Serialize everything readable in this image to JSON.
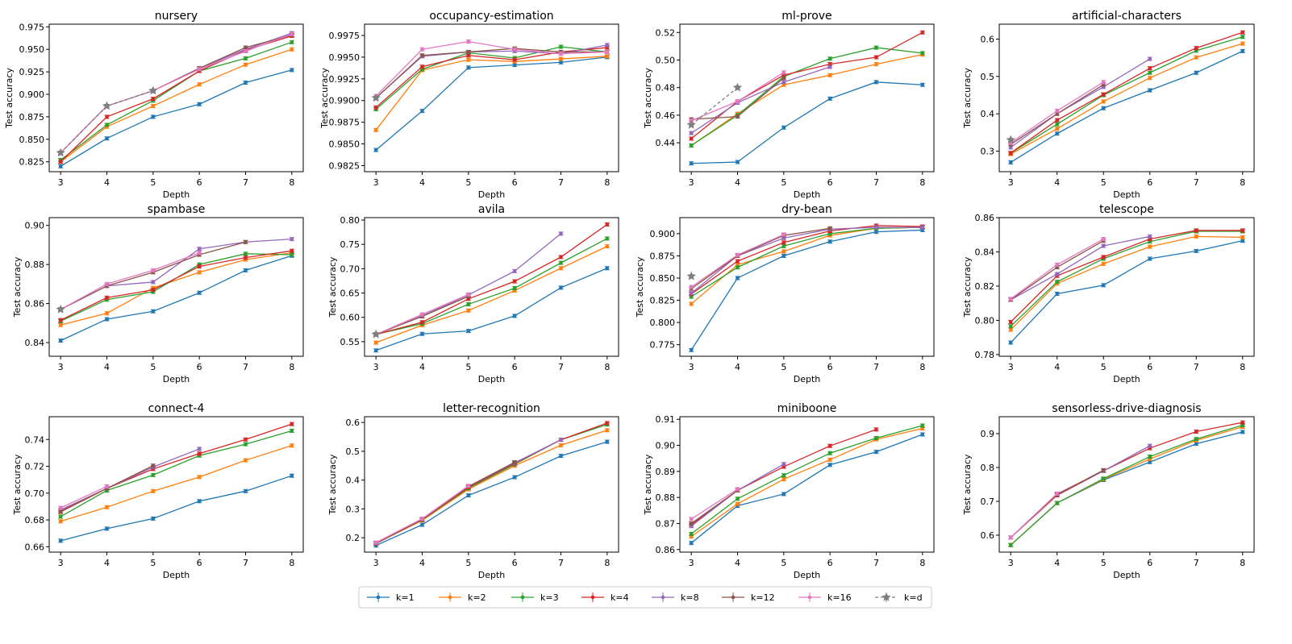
{
  "chart_data": {
    "type": "line",
    "layout": "3 rows x 4 columns of subplots with shared legend at bottom",
    "x": [
      3,
      4,
      5,
      6,
      7,
      8
    ],
    "xlabel": "Depth",
    "ylabel": "Test accuracy",
    "xticks": [
      "3",
      "4",
      "5",
      "6",
      "7",
      "8"
    ],
    "legend": {
      "placement": "bottom-center",
      "entries": [
        {
          "name": "k=1",
          "color": "#1f77b4",
          "style": "solid",
          "marker": "dot"
        },
        {
          "name": "k=2",
          "color": "#ff7f0e",
          "style": "solid",
          "marker": "dot"
        },
        {
          "name": "k=3",
          "color": "#2ca02c",
          "style": "solid",
          "marker": "dot"
        },
        {
          "name": "k=4",
          "color": "#d62728",
          "style": "solid",
          "marker": "dot"
        },
        {
          "name": "k=8",
          "color": "#9467bd",
          "style": "solid",
          "marker": "dot"
        },
        {
          "name": "k=12",
          "color": "#8c564b",
          "style": "solid",
          "marker": "dot"
        },
        {
          "name": "k=16",
          "color": "#e377c2",
          "style": "solid",
          "marker": "dot"
        },
        {
          "name": "k=d",
          "color": "#7f7f7f",
          "style": "dashed",
          "marker": "star"
        }
      ]
    },
    "subplots": [
      {
        "title": "nursery",
        "ylim": [
          0.814,
          0.978
        ],
        "yticks": [
          "0.825",
          "0.850",
          "0.875",
          "0.900",
          "0.925",
          "0.950",
          "0.975"
        ],
        "series": [
          [
            0.82,
            0.851,
            0.875,
            0.889,
            0.913,
            0.927
          ],
          [
            0.825,
            0.864,
            0.887,
            0.911,
            0.933,
            0.95
          ],
          [
            0.827,
            0.866,
            0.893,
            0.926,
            0.94,
            0.958
          ],
          [
            0.825,
            0.875,
            0.895,
            0.926,
            0.949,
            0.965
          ],
          [
            0.835,
            0.887,
            0.904,
            0.929,
            0.95,
            0.968
          ],
          [
            0.835,
            0.887,
            0.904,
            0.929,
            0.952,
            0.966
          ],
          [
            0.835,
            0.887,
            0.904,
            0.928,
            0.948,
            0.967
          ],
          [
            0.835,
            0.887,
            0.904,
            null,
            null,
            null
          ]
        ]
      },
      {
        "title": "occupancy-estimation",
        "ylim": [
          0.9818,
          0.9988
        ],
        "yticks": [
          "0.9825",
          "0.9850",
          "0.9875",
          "0.9900",
          "0.9925",
          "0.9950",
          "0.9975"
        ],
        "series": [
          [
            0.9843,
            0.9888,
            0.9938,
            0.9941,
            0.9944,
            0.995
          ],
          [
            0.9866,
            0.9935,
            0.9947,
            0.9945,
            0.9948,
            0.9951
          ],
          [
            0.989,
            0.9936,
            0.9955,
            0.9949,
            0.9962,
            0.9956
          ],
          [
            0.9892,
            0.9939,
            0.9952,
            0.9947,
            0.9956,
            0.9961
          ],
          [
            0.9903,
            0.9951,
            0.9956,
            0.9957,
            0.9954,
            0.9964
          ],
          [
            0.9903,
            0.9952,
            0.9956,
            0.996,
            0.9956,
            0.9956
          ],
          [
            0.9905,
            0.9959,
            0.9968,
            0.9959,
            0.9954,
            0.9956
          ],
          [
            0.9903,
            null,
            null,
            null,
            null,
            null
          ]
        ]
      },
      {
        "title": "ml-prove",
        "ylim": [
          0.419,
          0.526
        ],
        "yticks": [
          "0.44",
          "0.46",
          "0.48",
          "0.50",
          "0.52"
        ],
        "series": [
          [
            0.425,
            0.426,
            0.451,
            0.472,
            0.484,
            0.482
          ],
          [
            0.438,
            0.461,
            0.482,
            0.489,
            0.497,
            0.504
          ],
          [
            0.438,
            0.46,
            0.488,
            0.501,
            0.509,
            0.505
          ],
          [
            0.443,
            0.47,
            0.489,
            0.497,
            0.502,
            0.52
          ],
          [
            0.447,
            0.469,
            0.484,
            0.495,
            null,
            null
          ],
          [
            0.457,
            0.459,
            0.487,
            null,
            null,
            null
          ],
          [
            0.456,
            0.47,
            0.491,
            null,
            null,
            null
          ],
          [
            0.453,
            0.48,
            null,
            null,
            null,
            null
          ]
        ]
      },
      {
        "title": "artificial-characters",
        "ylim": [
          0.245,
          0.64
        ],
        "yticks": [
          "0.3",
          "0.4",
          "0.5",
          "0.6"
        ],
        "series": [
          [
            0.27,
            0.347,
            0.415,
            0.463,
            0.51,
            0.568
          ],
          [
            0.292,
            0.36,
            0.433,
            0.496,
            0.551,
            0.588
          ],
          [
            0.295,
            0.372,
            0.45,
            0.51,
            0.569,
            0.606
          ],
          [
            0.295,
            0.383,
            0.452,
            0.522,
            0.576,
            0.618
          ],
          [
            0.31,
            0.4,
            0.472,
            0.547,
            null,
            null
          ],
          [
            0.318,
            0.4,
            0.478,
            null,
            null,
            null
          ],
          [
            0.322,
            0.408,
            0.485,
            null,
            null,
            null
          ],
          [
            0.33,
            null,
            null,
            null,
            null,
            null
          ]
        ]
      },
      {
        "title": "spambase",
        "ylim": [
          0.833,
          0.904
        ],
        "yticks": [
          "0.84",
          "0.86",
          "0.88",
          "0.90"
        ],
        "series": [
          [
            0.841,
            0.852,
            0.856,
            0.8655,
            0.877,
            0.8845
          ],
          [
            0.849,
            0.855,
            0.868,
            0.876,
            0.8825,
            0.886
          ],
          [
            0.851,
            0.862,
            0.866,
            0.88,
            0.8855,
            0.885
          ],
          [
            0.8515,
            0.863,
            0.867,
            0.879,
            0.8835,
            0.887
          ],
          [
            0.857,
            0.869,
            0.871,
            0.888,
            0.8915,
            0.893
          ],
          [
            0.857,
            0.869,
            0.876,
            0.885,
            0.8915,
            null
          ],
          [
            0.857,
            0.87,
            0.877,
            0.886,
            null,
            null
          ],
          [
            0.857,
            null,
            null,
            null,
            null,
            null
          ]
        ]
      },
      {
        "title": "avila",
        "ylim": [
          0.52,
          0.805
        ],
        "yticks": [
          "0.55",
          "0.60",
          "0.65",
          "0.70",
          "0.75",
          "0.80"
        ],
        "series": [
          [
            0.532,
            0.566,
            0.572,
            0.603,
            0.661,
            0.701
          ],
          [
            0.548,
            0.584,
            0.614,
            0.655,
            0.701,
            0.746
          ],
          [
            0.565,
            0.587,
            0.627,
            0.66,
            0.712,
            0.762
          ],
          [
            0.565,
            0.59,
            0.638,
            0.674,
            0.724,
            0.791
          ],
          [
            0.565,
            0.603,
            0.646,
            0.695,
            0.772,
            null
          ],
          [
            0.565,
            0.602,
            0.643,
            null,
            null,
            null
          ],
          [
            0.565,
            0.606,
            0.647,
            null,
            null,
            null
          ],
          [
            0.565,
            null,
            null,
            null,
            null,
            null
          ]
        ]
      },
      {
        "title": "dry-bean",
        "ylim": [
          0.762,
          0.918
        ],
        "yticks": [
          "0.775",
          "0.800",
          "0.825",
          "0.850",
          "0.875",
          "0.900"
        ],
        "series": [
          [
            0.769,
            0.85,
            0.875,
            0.891,
            0.902,
            0.904
          ],
          [
            0.821,
            0.865,
            0.88,
            0.898,
            0.906,
            0.907
          ],
          [
            0.829,
            0.862,
            0.886,
            0.9,
            0.906,
            0.907
          ],
          [
            0.832,
            0.869,
            0.89,
            0.903,
            0.909,
            0.908
          ],
          [
            0.833,
            0.875,
            0.895,
            0.905,
            0.907,
            0.907
          ],
          [
            0.838,
            0.875,
            0.898,
            0.906,
            null,
            null
          ],
          [
            0.84,
            0.876,
            0.899,
            null,
            null,
            null
          ],
          [
            0.852,
            null,
            null,
            null,
            null,
            null
          ]
        ]
      },
      {
        "title": "telescope",
        "ylim": [
          0.779,
          0.86
        ],
        "yticks": [
          "0.78",
          "0.80",
          "0.82",
          "0.84",
          "0.86"
        ],
        "series": [
          [
            0.787,
            0.8155,
            0.8205,
            0.836,
            0.8405,
            0.8465
          ],
          [
            0.7945,
            0.8215,
            0.833,
            0.843,
            0.849,
            0.8485
          ],
          [
            0.7965,
            0.8225,
            0.836,
            0.846,
            0.852,
            0.852
          ],
          [
            0.799,
            0.826,
            0.837,
            0.8475,
            0.8525,
            0.8525
          ],
          [
            0.812,
            0.827,
            0.8435,
            0.849,
            null,
            null
          ],
          [
            0.812,
            0.831,
            0.8465,
            null,
            null,
            null
          ],
          [
            0.8125,
            0.8325,
            0.8475,
            null,
            null,
            null
          ],
          [
            null,
            null,
            null,
            null,
            null,
            null
          ]
        ]
      },
      {
        "title": "connect-4",
        "ylim": [
          0.656,
          0.757
        ],
        "yticks": [
          "0.66",
          "0.68",
          "0.70",
          "0.72",
          "0.74"
        ],
        "series": [
          [
            0.6645,
            0.6735,
            0.681,
            0.694,
            0.7015,
            0.713
          ],
          [
            0.679,
            0.6895,
            0.7015,
            0.712,
            0.7245,
            0.7355
          ],
          [
            0.6825,
            0.702,
            0.7135,
            0.728,
            0.7365,
            0.7465
          ],
          [
            0.686,
            0.7035,
            0.718,
            0.7295,
            0.74,
            0.7515
          ],
          [
            0.6875,
            0.7035,
            0.7195,
            0.733,
            null,
            null
          ],
          [
            0.6865,
            0.7035,
            0.7205,
            null,
            null,
            null
          ],
          [
            0.689,
            0.705,
            null,
            null,
            null,
            null
          ],
          [
            null,
            null,
            null,
            null,
            null,
            null
          ]
        ]
      },
      {
        "title": "letter-recognition",
        "ylim": [
          0.15,
          0.62
        ],
        "yticks": [
          "0.2",
          "0.3",
          "0.4",
          "0.5",
          "0.6"
        ],
        "series": [
          [
            0.173,
            0.245,
            0.347,
            0.41,
            0.484,
            0.533
          ],
          [
            0.18,
            0.26,
            0.368,
            0.45,
            0.521,
            0.573
          ],
          [
            0.18,
            0.262,
            0.372,
            0.455,
            0.54,
            0.593
          ],
          [
            0.18,
            0.263,
            0.375,
            0.458,
            0.54,
            0.598
          ],
          [
            0.182,
            0.265,
            0.378,
            0.46,
            0.54,
            null
          ],
          [
            0.18,
            0.265,
            0.378,
            0.462,
            null,
            null
          ],
          [
            0.183,
            0.266,
            0.38,
            null,
            null,
            null
          ],
          [
            null,
            null,
            null,
            null,
            null,
            null
          ]
        ]
      },
      {
        "title": "miniboone",
        "ylim": [
          0.859,
          0.911
        ],
        "yticks": [
          "0.86",
          "0.87",
          "0.88",
          "0.89",
          "0.90",
          "0.91"
        ],
        "series": [
          [
            0.8625,
            0.8768,
            0.8813,
            0.8925,
            0.8975,
            0.9042
          ],
          [
            0.865,
            0.8775,
            0.887,
            0.8945,
            0.9023,
            0.9065
          ],
          [
            0.866,
            0.8795,
            0.8885,
            0.897,
            0.9028,
            0.9076
          ],
          [
            0.8695,
            0.8827,
            0.8918,
            0.8998,
            0.9061,
            null
          ],
          [
            0.869,
            0.8827,
            0.8928,
            null,
            null,
            null
          ],
          [
            0.87,
            0.8827,
            null,
            null,
            null,
            null
          ],
          [
            0.8717,
            0.8832,
            null,
            null,
            null,
            null
          ],
          [
            null,
            null,
            null,
            null,
            null,
            null
          ]
        ]
      },
      {
        "title": "sensorless-drive-diagnosis",
        "ylim": [
          0.55,
          0.95
        ],
        "yticks": [
          "0.6",
          "0.7",
          "0.8",
          "0.9"
        ],
        "series": [
          [
            0.571,
            0.695,
            0.763,
            0.816,
            0.87,
            0.905
          ],
          [
            0.571,
            0.695,
            0.765,
            0.825,
            0.88,
            0.92
          ],
          [
            0.571,
            0.695,
            0.767,
            0.832,
            0.884,
            0.925
          ],
          [
            0.593,
            0.718,
            0.79,
            0.857,
            0.906,
            0.933
          ],
          [
            0.593,
            0.722,
            0.79,
            0.864,
            null,
            null
          ],
          [
            0.593,
            0.72,
            0.792,
            null,
            null,
            null
          ],
          [
            0.593,
            0.723,
            null,
            null,
            null,
            null
          ],
          [
            null,
            null,
            null,
            null,
            null,
            null
          ]
        ]
      }
    ]
  }
}
